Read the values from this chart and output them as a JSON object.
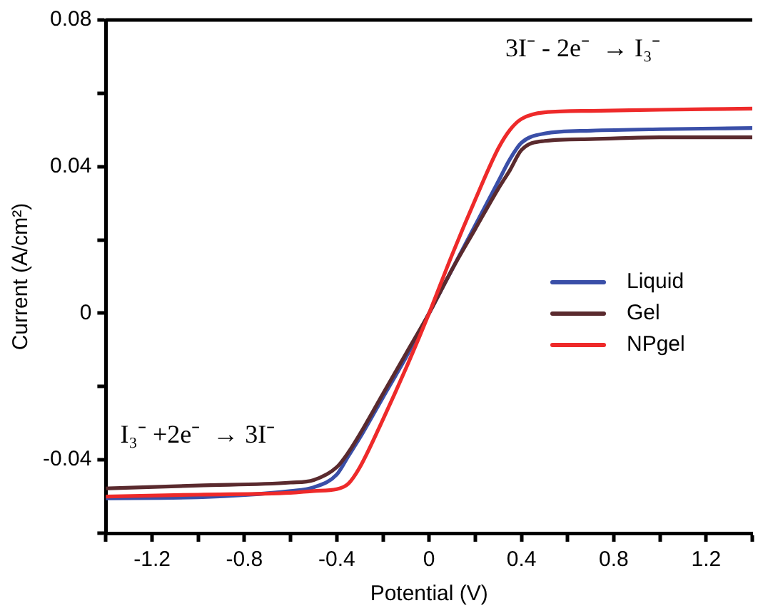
{
  "chart_data": {
    "type": "line",
    "xlabel": "Potential (V)",
    "ylabel": "Current (A/cm²)",
    "annotations": [
      "3I⁻ - 2e⁻  → I₃⁻",
      "I₃⁻ +2e⁻  → 3I⁻"
    ],
    "x": [
      -1.4,
      -1.0,
      -0.6,
      -0.5,
      -0.4,
      -0.35,
      -0.3,
      -0.2,
      -0.1,
      0,
      0.1,
      0.2,
      0.3,
      0.35,
      0.4,
      0.5,
      0.7,
      1.0,
      1.4
    ],
    "series": [
      {
        "name": "Liquid",
        "color": "#3a4fa8",
        "values": [
          -0.0505,
          -0.0502,
          -0.0485,
          -0.0475,
          -0.044,
          -0.039,
          -0.034,
          -0.023,
          -0.012,
          0,
          0.012,
          0.024,
          0.036,
          0.042,
          0.0465,
          0.049,
          0.0498,
          0.0502,
          0.0505
        ]
      },
      {
        "name": "Gel",
        "color": "#5a2a2e",
        "values": [
          -0.0478,
          -0.047,
          -0.0462,
          -0.0455,
          -0.042,
          -0.038,
          -0.033,
          -0.022,
          -0.011,
          0,
          0.012,
          0.023,
          0.034,
          0.039,
          0.0445,
          0.047,
          0.0475,
          0.048,
          0.048
        ]
      },
      {
        "name": "NPgel",
        "color": "#ee2a2a",
        "values": [
          -0.05,
          -0.0495,
          -0.049,
          -0.0485,
          -0.048,
          -0.0465,
          -0.042,
          -0.029,
          -0.015,
          0,
          0.016,
          0.031,
          0.045,
          0.05,
          0.053,
          0.0548,
          0.0552,
          0.0555,
          0.0558
        ]
      }
    ],
    "xlim": [
      -1.4,
      1.4
    ],
    "xticks": [
      {
        "value": -1.4,
        "label": null
      },
      -1.2,
      {
        "value": -1.0,
        "label": null
      },
      -0.8,
      {
        "value": -0.6,
        "label": null
      },
      -0.4,
      {
        "value": -0.2,
        "label": null
      },
      0,
      {
        "value": 0.2,
        "label": null
      },
      0.4,
      {
        "value": 0.6,
        "label": null
      },
      0.8,
      {
        "value": 1.0,
        "label": null
      },
      1.2,
      {
        "value": 1.4,
        "label": null
      }
    ],
    "ylim": [
      -0.06,
      0.08
    ],
    "yticks": [
      {
        "value": -0.06,
        "label": null
      },
      -0.04,
      {
        "value": -0.02,
        "label": null
      },
      0,
      {
        "value": 0.02,
        "label": null
      },
      0.04,
      {
        "value": 0.06,
        "label": null
      },
      0.08
    ],
    "grid": false,
    "legend": "right",
    "marker": "none",
    "line_style": "solid"
  }
}
